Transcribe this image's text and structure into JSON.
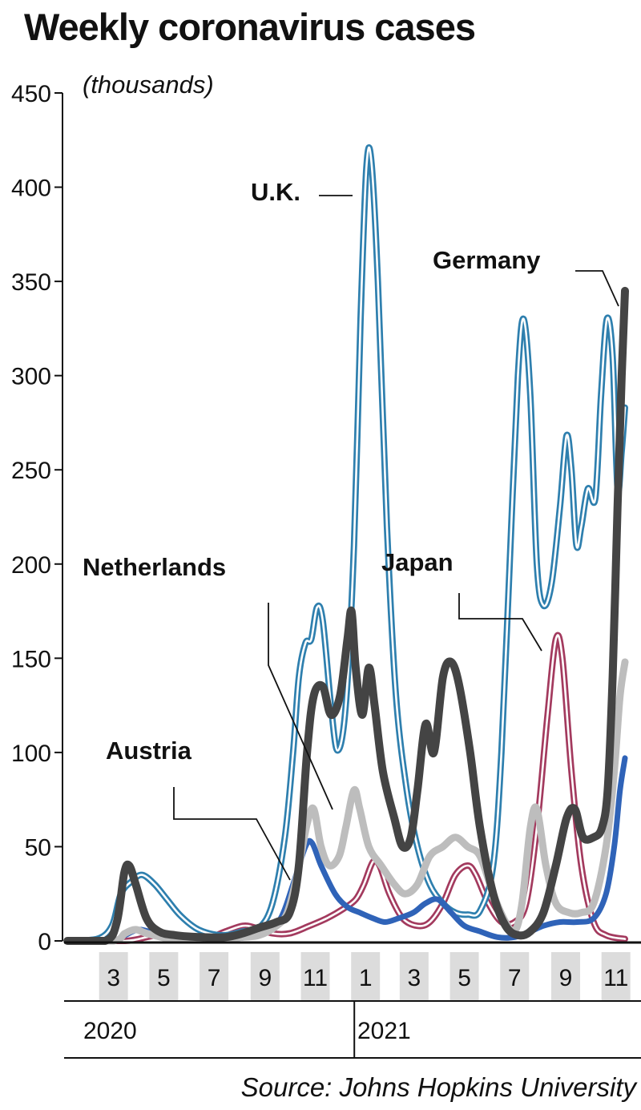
{
  "title": "Weekly coronavirus cases",
  "units": "(thousands)",
  "source": "Source: Johns Hopkins University",
  "chart_data": {
    "type": "line",
    "title": "Weekly coronavirus cases",
    "ylabel": "(thousands)",
    "xlabel": "",
    "ylim": [
      0,
      450
    ],
    "yticks": [
      0,
      50,
      100,
      150,
      200,
      250,
      300,
      350,
      400,
      450
    ],
    "x_unit": "month",
    "xlim": [
      "2020-01",
      "2021-11"
    ],
    "xticks": [
      {
        "label": "3",
        "date": "2020-03"
      },
      {
        "label": "5",
        "date": "2020-05"
      },
      {
        "label": "7",
        "date": "2020-07"
      },
      {
        "label": "9",
        "date": "2020-09"
      },
      {
        "label": "11",
        "date": "2020-11"
      },
      {
        "label": "1",
        "date": "2021-01"
      },
      {
        "label": "3",
        "date": "2021-03"
      },
      {
        "label": "5",
        "date": "2021-05"
      },
      {
        "label": "7",
        "date": "2021-07"
      },
      {
        "label": "9",
        "date": "2021-09"
      },
      {
        "label": "11",
        "date": "2021-11"
      }
    ],
    "years": [
      {
        "label": "2020",
        "from": "2020-01",
        "to": "2020-12"
      },
      {
        "label": "2021",
        "from": "2021-01",
        "to": "2021-11"
      }
    ],
    "grid": false,
    "legend": "direct labels",
    "series": [
      {
        "name": "U.K.",
        "color": "#2e7fae",
        "style": "outlined",
        "points": [
          [
            "2020-01-05",
            0
          ],
          [
            "2020-02-10",
            1
          ],
          [
            "2020-02-28",
            8
          ],
          [
            "2020-03-10",
            25
          ],
          [
            "2020-03-24",
            32
          ],
          [
            "2020-04-05",
            35
          ],
          [
            "2020-04-20",
            30
          ],
          [
            "2020-05-05",
            22
          ],
          [
            "2020-05-20",
            14
          ],
          [
            "2020-06-08",
            7
          ],
          [
            "2020-06-25",
            4
          ],
          [
            "2020-07-15",
            3
          ],
          [
            "2020-08-05",
            5
          ],
          [
            "2020-08-25",
            7
          ],
          [
            "2020-09-10",
            20
          ],
          [
            "2020-09-25",
            55
          ],
          [
            "2020-10-05",
            100
          ],
          [
            "2020-10-12",
            140
          ],
          [
            "2020-10-20",
            158
          ],
          [
            "2020-10-27",
            160
          ],
          [
            "2020-11-03",
            177
          ],
          [
            "2020-11-10",
            170
          ],
          [
            "2020-11-20",
            125
          ],
          [
            "2020-11-28",
            101
          ],
          [
            "2020-12-08",
            125
          ],
          [
            "2020-12-18",
            210
          ],
          [
            "2020-12-26",
            330
          ],
          [
            "2021-01-02",
            410
          ],
          [
            "2021-01-08",
            414
          ],
          [
            "2021-01-16",
            350
          ],
          [
            "2021-01-27",
            220
          ],
          [
            "2021-02-07",
            130
          ],
          [
            "2021-02-20",
            80
          ],
          [
            "2021-03-05",
            50
          ],
          [
            "2021-03-20",
            30
          ],
          [
            "2021-04-05",
            20
          ],
          [
            "2021-04-20",
            15
          ],
          [
            "2021-05-05",
            14
          ],
          [
            "2021-05-20",
            16
          ],
          [
            "2021-06-05",
            40
          ],
          [
            "2021-06-15",
            100
          ],
          [
            "2021-06-25",
            200
          ],
          [
            "2021-07-05",
            300
          ],
          [
            "2021-07-12",
            330
          ],
          [
            "2021-07-20",
            290
          ],
          [
            "2021-07-28",
            200
          ],
          [
            "2021-08-05",
            178
          ],
          [
            "2021-08-15",
            190
          ],
          [
            "2021-08-25",
            230
          ],
          [
            "2021-09-02",
            268
          ],
          [
            "2021-09-08",
            250
          ],
          [
            "2021-09-14",
            210
          ],
          [
            "2021-09-20",
            220
          ],
          [
            "2021-09-28",
            240
          ],
          [
            "2021-10-07",
            235
          ],
          [
            "2021-10-14",
            290
          ],
          [
            "2021-10-21",
            330
          ],
          [
            "2021-10-28",
            310
          ],
          [
            "2021-11-03",
            240
          ],
          [
            "2021-11-08",
            260
          ],
          [
            "2021-11-12",
            283
          ]
        ]
      },
      {
        "name": "Germany",
        "color": "#444444",
        "style": "solid",
        "points": [
          [
            "2020-01-05",
            0
          ],
          [
            "2020-02-20",
            0
          ],
          [
            "2020-03-05",
            10
          ],
          [
            "2020-03-14",
            36
          ],
          [
            "2020-03-20",
            40
          ],
          [
            "2020-03-28",
            30
          ],
          [
            "2020-04-10",
            12
          ],
          [
            "2020-04-25",
            5
          ],
          [
            "2020-05-15",
            3
          ],
          [
            "2020-06-15",
            2
          ],
          [
            "2020-07-15",
            2
          ],
          [
            "2020-08-05",
            4
          ],
          [
            "2020-08-25",
            7
          ],
          [
            "2020-09-15",
            10
          ],
          [
            "2020-10-01",
            15
          ],
          [
            "2020-10-12",
            40
          ],
          [
            "2020-10-22",
            100
          ],
          [
            "2020-10-30",
            130
          ],
          [
            "2020-11-10",
            135
          ],
          [
            "2020-11-20",
            120
          ],
          [
            "2020-12-01",
            130
          ],
          [
            "2020-12-10",
            160
          ],
          [
            "2020-12-15",
            175
          ],
          [
            "2020-12-20",
            145
          ],
          [
            "2020-12-28",
            120
          ],
          [
            "2021-01-05",
            145
          ],
          [
            "2021-01-12",
            125
          ],
          [
            "2021-01-22",
            90
          ],
          [
            "2021-02-05",
            65
          ],
          [
            "2021-02-15",
            50
          ],
          [
            "2021-02-25",
            55
          ],
          [
            "2021-03-05",
            80
          ],
          [
            "2021-03-15",
            115
          ],
          [
            "2021-03-25",
            100
          ],
          [
            "2021-04-05",
            140
          ],
          [
            "2021-04-15",
            148
          ],
          [
            "2021-04-25",
            135
          ],
          [
            "2021-05-08",
            100
          ],
          [
            "2021-05-20",
            60
          ],
          [
            "2021-06-05",
            25
          ],
          [
            "2021-06-20",
            8
          ],
          [
            "2021-07-05",
            3
          ],
          [
            "2021-07-20",
            5
          ],
          [
            "2021-08-05",
            15
          ],
          [
            "2021-08-20",
            40
          ],
          [
            "2021-09-02",
            65
          ],
          [
            "2021-09-12",
            70
          ],
          [
            "2021-09-22",
            55
          ],
          [
            "2021-10-05",
            55
          ],
          [
            "2021-10-15",
            60
          ],
          [
            "2021-10-22",
            80
          ],
          [
            "2021-10-28",
            140
          ],
          [
            "2021-11-03",
            230
          ],
          [
            "2021-11-08",
            300
          ],
          [
            "2021-11-12",
            345
          ]
        ]
      },
      {
        "name": "Netherlands",
        "color": "#2f63b8",
        "style": "solid",
        "points": [
          [
            "2020-01-05",
            0
          ],
          [
            "2020-03-01",
            0
          ],
          [
            "2020-03-15",
            3
          ],
          [
            "2020-04-01",
            6
          ],
          [
            "2020-04-20",
            4
          ],
          [
            "2020-05-10",
            2
          ],
          [
            "2020-06-10",
            1
          ],
          [
            "2020-07-15",
            1
          ],
          [
            "2020-08-10",
            2
          ],
          [
            "2020-09-01",
            5
          ],
          [
            "2020-09-20",
            12
          ],
          [
            "2020-10-05",
            30
          ],
          [
            "2020-10-20",
            50
          ],
          [
            "2020-10-28",
            52
          ],
          [
            "2020-11-08",
            40
          ],
          [
            "2020-11-25",
            25
          ],
          [
            "2020-12-10",
            18
          ],
          [
            "2020-12-25",
            15
          ],
          [
            "2021-01-10",
            12
          ],
          [
            "2021-01-25",
            10
          ],
          [
            "2021-02-10",
            12
          ],
          [
            "2021-02-28",
            15
          ],
          [
            "2021-03-15",
            20
          ],
          [
            "2021-03-30",
            22
          ],
          [
            "2021-04-15",
            15
          ],
          [
            "2021-05-01",
            8
          ],
          [
            "2021-05-20",
            5
          ],
          [
            "2021-06-10",
            2
          ],
          [
            "2021-07-01",
            2
          ],
          [
            "2021-07-20",
            5
          ],
          [
            "2021-08-05",
            8
          ],
          [
            "2021-08-25",
            10
          ],
          [
            "2021-09-15",
            10
          ],
          [
            "2021-10-05",
            12
          ],
          [
            "2021-10-20",
            25
          ],
          [
            "2021-10-30",
            50
          ],
          [
            "2021-11-06",
            80
          ],
          [
            "2021-11-12",
            97
          ]
        ]
      },
      {
        "name": "Japan",
        "color": "#a33a5e",
        "style": "outlined",
        "points": [
          [
            "2020-01-05",
            0
          ],
          [
            "2020-03-15",
            0
          ],
          [
            "2020-04-10",
            2
          ],
          [
            "2020-04-25",
            3
          ],
          [
            "2020-05-20",
            1
          ],
          [
            "2020-06-20",
            1
          ],
          [
            "2020-07-15",
            5
          ],
          [
            "2020-08-05",
            8
          ],
          [
            "2020-08-20",
            7
          ],
          [
            "2020-09-10",
            4
          ],
          [
            "2020-10-01",
            4
          ],
          [
            "2020-10-25",
            8
          ],
          [
            "2020-11-15",
            12
          ],
          [
            "2020-12-05",
            17
          ],
          [
            "2020-12-20",
            22
          ],
          [
            "2020-12-30",
            30
          ],
          [
            "2021-01-10",
            42
          ],
          [
            "2021-01-18",
            40
          ],
          [
            "2021-01-30",
            25
          ],
          [
            "2021-02-15",
            12
          ],
          [
            "2021-03-05",
            8
          ],
          [
            "2021-03-20",
            10
          ],
          [
            "2021-04-05",
            20
          ],
          [
            "2021-04-20",
            35
          ],
          [
            "2021-05-05",
            40
          ],
          [
            "2021-05-15",
            35
          ],
          [
            "2021-05-30",
            20
          ],
          [
            "2021-06-15",
            10
          ],
          [
            "2021-07-01",
            10
          ],
          [
            "2021-07-15",
            20
          ],
          [
            "2021-07-28",
            60
          ],
          [
            "2021-08-10",
            120
          ],
          [
            "2021-08-20",
            160
          ],
          [
            "2021-08-28",
            150
          ],
          [
            "2021-09-08",
            90
          ],
          [
            "2021-09-20",
            40
          ],
          [
            "2021-10-05",
            10
          ],
          [
            "2021-10-20",
            3
          ],
          [
            "2021-11-12",
            1
          ]
        ]
      },
      {
        "name": "Austria",
        "color": "#bdbdbd",
        "style": "solid",
        "points": [
          [
            "2020-01-05",
            0
          ],
          [
            "2020-03-01",
            0
          ],
          [
            "2020-03-15",
            4
          ],
          [
            "2020-03-28",
            6
          ],
          [
            "2020-04-10",
            4
          ],
          [
            "2020-05-10",
            1
          ],
          [
            "2020-06-10",
            1
          ],
          [
            "2020-07-10",
            1
          ],
          [
            "2020-08-05",
            2
          ],
          [
            "2020-08-25",
            3
          ],
          [
            "2020-09-15",
            8
          ],
          [
            "2020-09-28",
            15
          ],
          [
            "2020-10-10",
            35
          ],
          [
            "2020-10-22",
            62
          ],
          [
            "2020-10-30",
            70
          ],
          [
            "2020-11-08",
            50
          ],
          [
            "2020-11-18",
            40
          ],
          [
            "2020-11-30",
            45
          ],
          [
            "2020-12-08",
            60
          ],
          [
            "2020-12-18",
            80
          ],
          [
            "2020-12-25",
            70
          ],
          [
            "2021-01-05",
            50
          ],
          [
            "2021-01-20",
            40
          ],
          [
            "2021-02-05",
            30
          ],
          [
            "2021-02-18",
            25
          ],
          [
            "2021-03-05",
            30
          ],
          [
            "2021-03-20",
            45
          ],
          [
            "2021-04-05",
            50
          ],
          [
            "2021-04-20",
            55
          ],
          [
            "2021-05-05",
            50
          ],
          [
            "2021-05-20",
            45
          ],
          [
            "2021-06-05",
            25
          ],
          [
            "2021-06-20",
            10
          ],
          [
            "2021-07-01",
            5
          ],
          [
            "2021-07-10",
            20
          ],
          [
            "2021-07-20",
            60
          ],
          [
            "2021-07-28",
            70
          ],
          [
            "2021-08-08",
            40
          ],
          [
            "2021-08-20",
            20
          ],
          [
            "2021-09-05",
            15
          ],
          [
            "2021-09-20",
            15
          ],
          [
            "2021-10-05",
            20
          ],
          [
            "2021-10-20",
            50
          ],
          [
            "2021-10-30",
            90
          ],
          [
            "2021-11-06",
            130
          ],
          [
            "2021-11-12",
            148
          ]
        ]
      }
    ],
    "callouts": [
      {
        "series": "U.K.",
        "label": "U.K."
      },
      {
        "series": "Germany",
        "label": "Germany"
      },
      {
        "series": "Netherlands",
        "label": "Netherlands"
      },
      {
        "series": "Japan",
        "label": "Japan"
      },
      {
        "series": "Austria",
        "label": "Austria"
      }
    ]
  }
}
